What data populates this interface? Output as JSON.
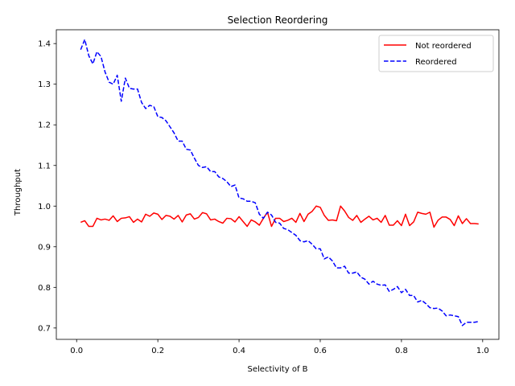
{
  "chart_data": {
    "type": "line",
    "title": "Selection Reordering",
    "xlabel": "Selectivity of B",
    "ylabel": "Throughput",
    "xlim": [
      -0.05,
      1.04
    ],
    "ylim": [
      0.672,
      1.434
    ],
    "xticks": [
      0.0,
      0.2,
      0.4,
      0.6,
      0.8,
      1.0
    ],
    "xtick_labels": [
      "0.0",
      "0.2",
      "0.4",
      "0.6",
      "0.8",
      "1.0"
    ],
    "yticks": [
      0.7,
      0.8,
      0.9,
      1.0,
      1.1,
      1.2,
      1.3,
      1.4
    ],
    "ytick_labels": [
      "0.7",
      "0.8",
      "0.9",
      "1.0",
      "1.1",
      "1.2",
      "1.3",
      "1.4"
    ],
    "grid": false,
    "legend_position": "top-right",
    "series": [
      {
        "name": "Not reordered",
        "color": "#ff0000",
        "style": "solid",
        "x": [
          0.01,
          0.02,
          0.03,
          0.04,
          0.05,
          0.06,
          0.07,
          0.08,
          0.09,
          0.1,
          0.11,
          0.12,
          0.13,
          0.14,
          0.15,
          0.16,
          0.17,
          0.18,
          0.19,
          0.2,
          0.21,
          0.22,
          0.23,
          0.24,
          0.25,
          0.26,
          0.27,
          0.28,
          0.29,
          0.3,
          0.31,
          0.32,
          0.33,
          0.34,
          0.35,
          0.36,
          0.37,
          0.38,
          0.39,
          0.4,
          0.41,
          0.42,
          0.43,
          0.44,
          0.45,
          0.46,
          0.47,
          0.48,
          0.49,
          0.5,
          0.51,
          0.52,
          0.53,
          0.54,
          0.55,
          0.56,
          0.57,
          0.58,
          0.59,
          0.6,
          0.61,
          0.62,
          0.63,
          0.64,
          0.65,
          0.66,
          0.67,
          0.68,
          0.69,
          0.7,
          0.71,
          0.72,
          0.73,
          0.74,
          0.75,
          0.76,
          0.77,
          0.78,
          0.79,
          0.8,
          0.81,
          0.82,
          0.83,
          0.84,
          0.85,
          0.86,
          0.87,
          0.88,
          0.89,
          0.9,
          0.91,
          0.92,
          0.93,
          0.94,
          0.95,
          0.96,
          0.97,
          0.98,
          0.99
        ],
        "y": [
          0.96,
          0.964,
          0.95,
          0.95,
          0.97,
          0.966,
          0.968,
          0.965,
          0.976,
          0.962,
          0.97,
          0.971,
          0.974,
          0.96,
          0.968,
          0.961,
          0.98,
          0.975,
          0.983,
          0.98,
          0.967,
          0.977,
          0.975,
          0.968,
          0.977,
          0.961,
          0.978,
          0.981,
          0.968,
          0.972,
          0.984,
          0.981,
          0.966,
          0.968,
          0.962,
          0.958,
          0.97,
          0.969,
          0.961,
          0.974,
          0.962,
          0.95,
          0.966,
          0.961,
          0.953,
          0.97,
          0.985,
          0.95,
          0.97,
          0.97,
          0.962,
          0.965,
          0.97,
          0.96,
          0.982,
          0.962,
          0.98,
          0.987,
          1.0,
          0.997,
          0.977,
          0.965,
          0.966,
          0.964,
          1.0,
          0.988,
          0.972,
          0.965,
          0.977,
          0.96,
          0.968,
          0.975,
          0.966,
          0.97,
          0.96,
          0.977,
          0.953,
          0.953,
          0.964,
          0.952,
          0.98,
          0.952,
          0.961,
          0.985,
          0.982,
          0.98,
          0.985,
          0.948,
          0.965,
          0.973,
          0.973,
          0.967,
          0.952,
          0.976,
          0.957,
          0.969,
          0.957,
          0.957,
          0.956
        ]
      },
      {
        "name": "Reordered",
        "color": "#0000ff",
        "style": "dashed",
        "x": [
          0.01,
          0.02,
          0.03,
          0.04,
          0.05,
          0.06,
          0.07,
          0.08,
          0.09,
          0.1,
          0.11,
          0.12,
          0.13,
          0.14,
          0.15,
          0.16,
          0.17,
          0.18,
          0.19,
          0.2,
          0.21,
          0.22,
          0.23,
          0.24,
          0.25,
          0.26,
          0.27,
          0.28,
          0.29,
          0.3,
          0.31,
          0.32,
          0.33,
          0.34,
          0.35,
          0.36,
          0.37,
          0.38,
          0.39,
          0.4,
          0.41,
          0.42,
          0.43,
          0.44,
          0.45,
          0.46,
          0.47,
          0.48,
          0.49,
          0.5,
          0.51,
          0.52,
          0.53,
          0.54,
          0.55,
          0.56,
          0.57,
          0.58,
          0.59,
          0.6,
          0.61,
          0.62,
          0.63,
          0.64,
          0.65,
          0.66,
          0.67,
          0.68,
          0.69,
          0.7,
          0.71,
          0.72,
          0.73,
          0.74,
          0.75,
          0.76,
          0.77,
          0.78,
          0.79,
          0.8,
          0.81,
          0.82,
          0.83,
          0.84,
          0.85,
          0.86,
          0.87,
          0.88,
          0.89,
          0.9,
          0.91,
          0.92,
          0.93,
          0.94,
          0.95,
          0.96,
          0.97,
          0.98,
          0.99
        ],
        "y": [
          1.385,
          1.41,
          1.37,
          1.35,
          1.38,
          1.368,
          1.33,
          1.305,
          1.3,
          1.322,
          1.258,
          1.315,
          1.29,
          1.288,
          1.288,
          1.255,
          1.24,
          1.248,
          1.245,
          1.22,
          1.218,
          1.21,
          1.195,
          1.18,
          1.16,
          1.16,
          1.14,
          1.138,
          1.118,
          1.1,
          1.095,
          1.097,
          1.085,
          1.085,
          1.072,
          1.068,
          1.06,
          1.048,
          1.052,
          1.02,
          1.018,
          1.012,
          1.012,
          1.008,
          0.98,
          0.97,
          0.985,
          0.978,
          0.96,
          0.958,
          0.945,
          0.942,
          0.935,
          0.928,
          0.915,
          0.912,
          0.915,
          0.906,
          0.895,
          0.895,
          0.87,
          0.875,
          0.865,
          0.848,
          0.848,
          0.852,
          0.835,
          0.835,
          0.838,
          0.825,
          0.82,
          0.808,
          0.815,
          0.808,
          0.805,
          0.806,
          0.79,
          0.795,
          0.802,
          0.787,
          0.795,
          0.78,
          0.78,
          0.764,
          0.768,
          0.76,
          0.75,
          0.748,
          0.749,
          0.742,
          0.73,
          0.732,
          0.73,
          0.728,
          0.706,
          0.714,
          0.714,
          0.714,
          0.716
        ]
      }
    ]
  }
}
